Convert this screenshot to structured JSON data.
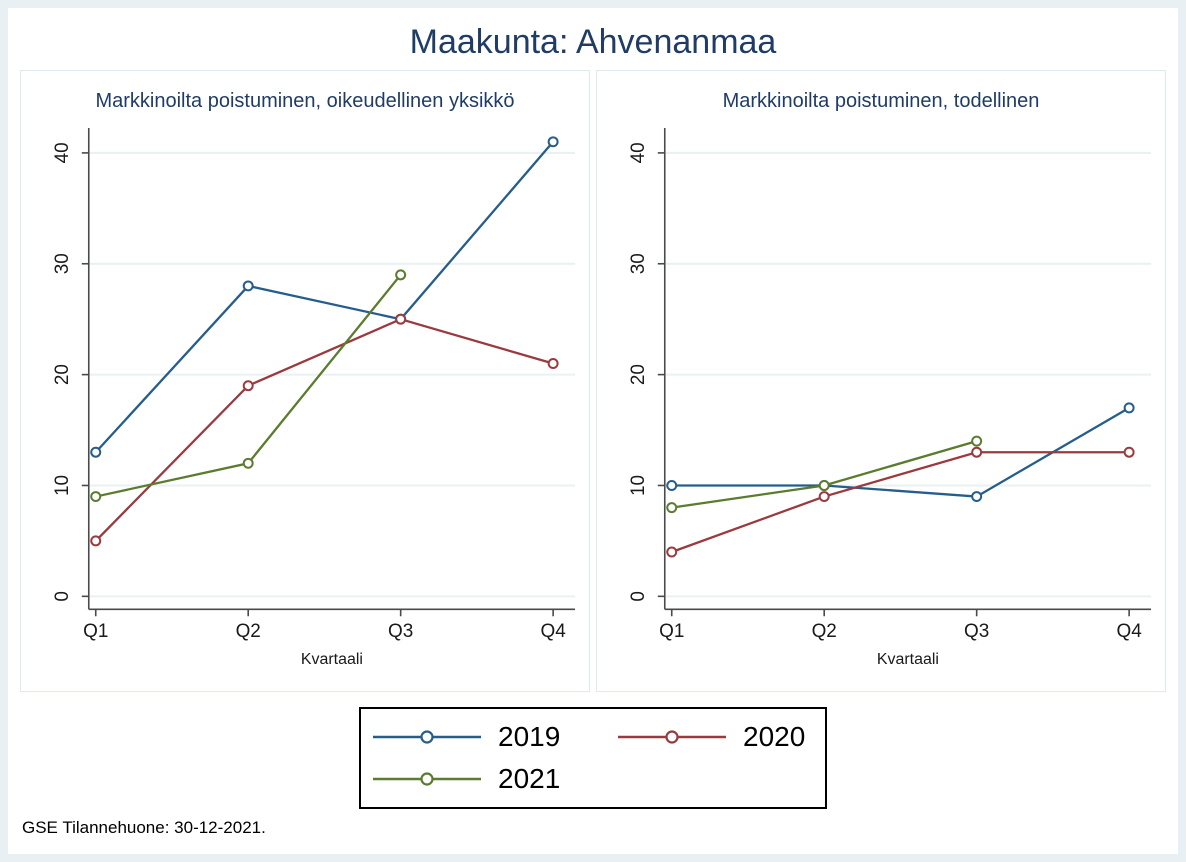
{
  "figure": {
    "title": "Maakunta: Ahvenanmaa",
    "caption": "GSE Tilannehuone: 30-12-2021."
  },
  "colors": {
    "title_navy": "#1f3c67",
    "axis": "#4a4a4a",
    "tick_label": "#1a1a1a",
    "gridline": "#e9f1f3",
    "outer_border": "#e8f0f3",
    "panel_border": "#dfe9ee",
    "series_2019": "#255d8c",
    "series_2020": "#9a3a3e",
    "series_2021": "#5b7c2f"
  },
  "legend": {
    "entries": [
      {
        "label": "2019",
        "color": "#255d8c"
      },
      {
        "label": "2020",
        "color": "#9a3a3e"
      },
      {
        "label": "2021",
        "color": "#5b7c2f"
      }
    ]
  },
  "chart_data": [
    {
      "type": "line",
      "title": "Markkinoilta poistuminen, oikeudellinen yksikkö",
      "categories": [
        "Q1",
        "Q2",
        "Q3",
        "Q4"
      ],
      "xlabel": "Kvartaali",
      "ylim": [
        0,
        40
      ],
      "yticks": [
        0,
        10,
        20,
        30,
        40
      ],
      "grid": true,
      "marker": "hollow-circle",
      "series": [
        {
          "name": "2019",
          "color": "#255d8c",
          "values": [
            13,
            28,
            25,
            41
          ]
        },
        {
          "name": "2020",
          "color": "#9a3a3e",
          "values": [
            5,
            19,
            25,
            21
          ]
        },
        {
          "name": "2021",
          "color": "#5b7c2f",
          "values": [
            9,
            12,
            29,
            null
          ]
        }
      ]
    },
    {
      "type": "line",
      "title": "Markkinoilta poistuminen, todellinen",
      "categories": [
        "Q1",
        "Q2",
        "Q3",
        "Q4"
      ],
      "xlabel": "Kvartaali",
      "ylim": [
        0,
        40
      ],
      "yticks": [
        0,
        10,
        20,
        30,
        40
      ],
      "grid": true,
      "marker": "hollow-circle",
      "series": [
        {
          "name": "2019",
          "color": "#255d8c",
          "values": [
            10,
            10,
            9,
            17
          ]
        },
        {
          "name": "2020",
          "color": "#9a3a3e",
          "values": [
            4,
            9,
            13,
            13
          ]
        },
        {
          "name": "2021",
          "color": "#5b7c2f",
          "values": [
            8,
            10,
            14,
            null
          ]
        }
      ]
    }
  ]
}
